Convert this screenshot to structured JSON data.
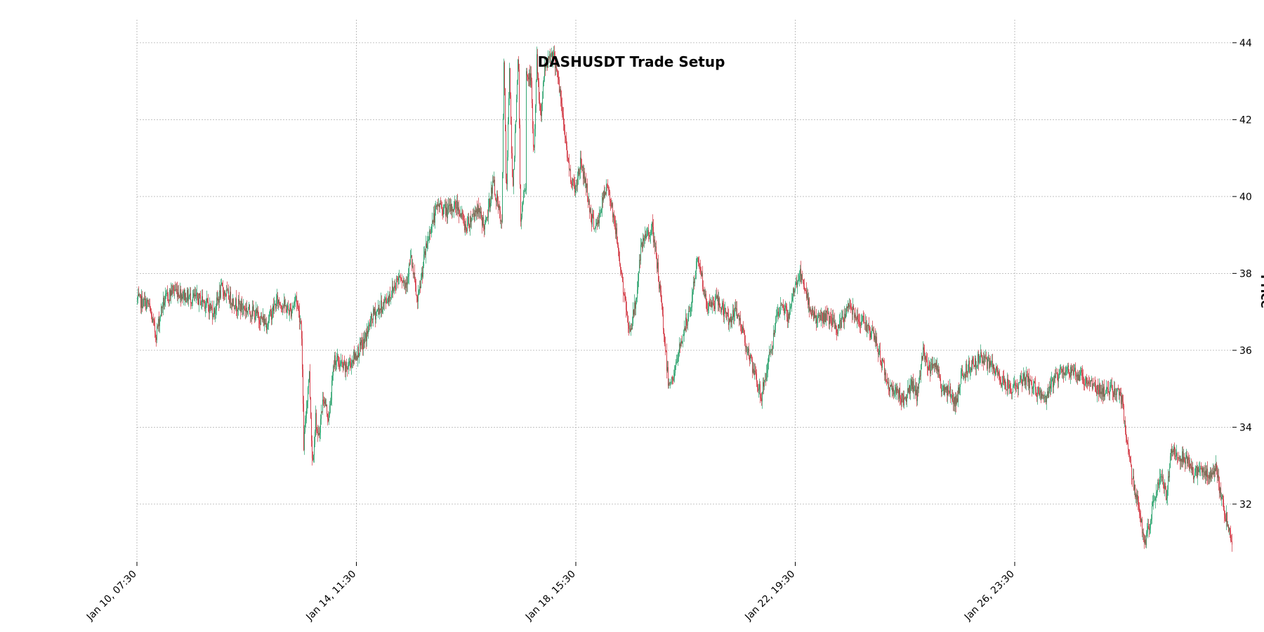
{
  "chart_data": {
    "type": "candlestick",
    "title": "DASHUSDT Trade Setup",
    "ylabel": "Price",
    "xlabel": "",
    "ylim": [
      30.5,
      44.6
    ],
    "y_ticks": [
      32,
      34,
      36,
      38,
      40,
      42,
      44
    ],
    "y_axis_position": "right",
    "x_tick_labels": [
      "Jan 10, 07:30",
      "Jan 14, 11:30",
      "Jan 18, 15:30",
      "Jan 22, 19:30",
      "Jan 26, 23:30"
    ],
    "x_tick_fractions": [
      0.0,
      0.2,
      0.4,
      0.6,
      0.8
    ],
    "grid": true,
    "colors": {
      "up": "#26a069",
      "down": "#d0313d",
      "grid": "#b0b0b0"
    },
    "price_path": [
      [
        0.0,
        37.3
      ],
      [
        0.01,
        37.2
      ],
      [
        0.017,
        36.4
      ],
      [
        0.023,
        37.2
      ],
      [
        0.033,
        37.6
      ],
      [
        0.045,
        37.4
      ],
      [
        0.06,
        37.3
      ],
      [
        0.07,
        37.0
      ],
      [
        0.077,
        37.6
      ],
      [
        0.09,
        37.2
      ],
      [
        0.105,
        37.0
      ],
      [
        0.118,
        36.7
      ],
      [
        0.128,
        37.3
      ],
      [
        0.14,
        37.0
      ],
      [
        0.145,
        37.4
      ],
      [
        0.15,
        36.6
      ],
      [
        0.157,
        35.5
      ],
      [
        0.163,
        34.3
      ],
      [
        0.152,
        33.5
      ],
      [
        0.16,
        33.0
      ],
      [
        0.165,
        33.6
      ],
      [
        0.17,
        34.8
      ],
      [
        0.175,
        34.2
      ],
      [
        0.18,
        35.8
      ],
      [
        0.19,
        35.5
      ],
      [
        0.2,
        35.9
      ],
      [
        0.207,
        36.2
      ],
      [
        0.215,
        36.9
      ],
      [
        0.225,
        37.2
      ],
      [
        0.232,
        37.5
      ],
      [
        0.24,
        38.0
      ],
      [
        0.245,
        37.7
      ],
      [
        0.25,
        38.4
      ],
      [
        0.256,
        37.2
      ],
      [
        0.262,
        38.4
      ],
      [
        0.268,
        39.2
      ],
      [
        0.275,
        39.8
      ],
      [
        0.283,
        39.6
      ],
      [
        0.292,
        39.8
      ],
      [
        0.3,
        39.2
      ],
      [
        0.31,
        39.7
      ],
      [
        0.318,
        39.2
      ],
      [
        0.325,
        40.4
      ],
      [
        0.333,
        39.2
      ],
      [
        0.337,
        39.8
      ],
      [
        0.343,
        40.0
      ],
      [
        0.35,
        39.4
      ],
      [
        0.355,
        40.3
      ],
      [
        0.362,
        40.9
      ],
      [
        0.368,
        42.0
      ],
      [
        0.335,
        43.9
      ],
      [
        0.34,
        43.4
      ],
      [
        0.348,
        43.9
      ],
      [
        0.355,
        43.2
      ],
      [
        0.36,
        43.0
      ],
      [
        0.365,
        43.6
      ],
      [
        0.372,
        43.3
      ],
      [
        0.378,
        43.8
      ],
      [
        0.383,
        43.4
      ],
      [
        0.388,
        42.2
      ],
      [
        0.395,
        40.6
      ],
      [
        0.4,
        40.2
      ],
      [
        0.405,
        40.9
      ],
      [
        0.41,
        40.3
      ],
      [
        0.415,
        39.4
      ],
      [
        0.42,
        39.2
      ],
      [
        0.425,
        39.9
      ],
      [
        0.43,
        40.3
      ],
      [
        0.435,
        39.5
      ],
      [
        0.44,
        38.5
      ],
      [
        0.445,
        37.3
      ],
      [
        0.45,
        36.5
      ],
      [
        0.455,
        37.2
      ],
      [
        0.46,
        38.6
      ],
      [
        0.465,
        39.0
      ],
      [
        0.47,
        39.2
      ],
      [
        0.475,
        38.2
      ],
      [
        0.48,
        36.8
      ],
      [
        0.485,
        35.2
      ],
      [
        0.49,
        35.3
      ],
      [
        0.495,
        36.0
      ],
      [
        0.5,
        36.6
      ],
      [
        0.505,
        37.0
      ],
      [
        0.512,
        38.5
      ],
      [
        0.515,
        38.0
      ],
      [
        0.52,
        37.1
      ],
      [
        0.53,
        37.3
      ],
      [
        0.54,
        36.8
      ],
      [
        0.548,
        37.0
      ],
      [
        0.555,
        36.3
      ],
      [
        0.562,
        35.5
      ],
      [
        0.57,
        34.8
      ],
      [
        0.578,
        35.9
      ],
      [
        0.585,
        36.9
      ],
      [
        0.59,
        37.2
      ],
      [
        0.595,
        36.8
      ],
      [
        0.6,
        37.6
      ],
      [
        0.605,
        38.0
      ],
      [
        0.612,
        37.3
      ],
      [
        0.62,
        36.8
      ],
      [
        0.63,
        36.9
      ],
      [
        0.64,
        36.5
      ],
      [
        0.65,
        37.2
      ],
      [
        0.66,
        36.8
      ],
      [
        0.668,
        36.6
      ],
      [
        0.675,
        36.2
      ],
      [
        0.682,
        35.5
      ],
      [
        0.688,
        35.0
      ],
      [
        0.695,
        34.9
      ],
      [
        0.7,
        34.7
      ],
      [
        0.707,
        35.1
      ],
      [
        0.712,
        34.8
      ],
      [
        0.718,
        36.0
      ],
      [
        0.723,
        35.5
      ],
      [
        0.728,
        35.8
      ],
      [
        0.735,
        35.0
      ],
      [
        0.742,
        34.9
      ],
      [
        0.748,
        34.6
      ],
      [
        0.752,
        35.3
      ],
      [
        0.76,
        35.6
      ],
      [
        0.77,
        35.8
      ],
      [
        0.78,
        35.6
      ],
      [
        0.79,
        35.2
      ],
      [
        0.8,
        35.0
      ],
      [
        0.81,
        35.3
      ],
      [
        0.82,
        35.0
      ],
      [
        0.83,
        34.7
      ],
      [
        0.838,
        35.3
      ],
      [
        0.848,
        35.5
      ],
      [
        0.858,
        35.4
      ],
      [
        0.868,
        35.2
      ],
      [
        0.878,
        35.0
      ],
      [
        0.888,
        34.9
      ],
      [
        0.895,
        35.0
      ],
      [
        0.9,
        34.6
      ],
      [
        0.905,
        33.4
      ],
      [
        0.91,
        32.5
      ],
      [
        0.915,
        32.0
      ],
      [
        0.92,
        30.9
      ],
      [
        0.925,
        31.5
      ],
      [
        0.93,
        32.3
      ],
      [
        0.935,
        32.8
      ],
      [
        0.94,
        32.2
      ],
      [
        0.945,
        33.5
      ],
      [
        0.95,
        33.3
      ],
      [
        0.958,
        33.2
      ],
      [
        0.965,
        32.8
      ],
      [
        0.972,
        32.9
      ],
      [
        0.98,
        32.7
      ],
      [
        0.985,
        33.0
      ],
      [
        0.99,
        32.2
      ],
      [
        0.995,
        31.6
      ],
      [
        1.0,
        31.0
      ]
    ]
  }
}
